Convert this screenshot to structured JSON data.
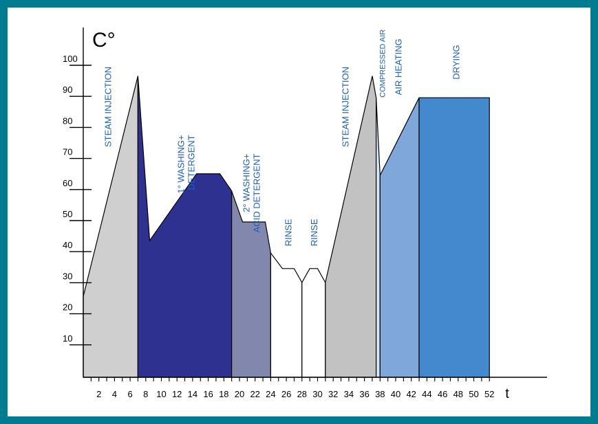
{
  "chart_data": {
    "type": "area",
    "y_label": "C°",
    "x_label": "t",
    "xlim": [
      0,
      58
    ],
    "ylim": [
      0,
      110
    ],
    "x_ticks": [
      2,
      4,
      6,
      8,
      10,
      12,
      14,
      16,
      18,
      20,
      22,
      24,
      26,
      28,
      30,
      32,
      34,
      36,
      38,
      40,
      42,
      44,
      46,
      48,
      50,
      52
    ],
    "y_ticks": [
      10,
      20,
      30,
      40,
      50,
      60,
      70,
      80,
      90,
      100
    ],
    "phases": [
      {
        "name": "steam-injection-1",
        "label": [
          "STEAM INJECTION"
        ],
        "color": "#cfcfcf",
        "points": [
          [
            0,
            26
          ],
          [
            7,
            97
          ],
          [
            7,
            0
          ],
          [
            0,
            0
          ]
        ],
        "label_x": 3.2,
        "label_top": 100,
        "font": "phase"
      },
      {
        "name": "washing-1",
        "label": [
          "1° WASHING+",
          "DETERGENT"
        ],
        "color": "#2e3190",
        "points": [
          [
            7,
            97
          ],
          [
            8.5,
            44
          ],
          [
            14.5,
            65.5
          ],
          [
            17.5,
            65.5
          ],
          [
            19,
            60
          ],
          [
            19,
            0
          ],
          [
            7,
            0
          ]
        ],
        "label_x": 13.2,
        "label_top": 78,
        "font": "phase"
      },
      {
        "name": "washing-2",
        "label": [
          "2° WASHING+",
          "ACID DETERGENT"
        ],
        "color": "#8288ad",
        "points": [
          [
            19,
            60
          ],
          [
            20.4,
            50
          ],
          [
            23.3,
            50
          ],
          [
            24,
            40
          ],
          [
            24,
            0
          ],
          [
            19,
            0
          ]
        ],
        "label_x": 21.6,
        "label_top": 72,
        "font": "phase"
      },
      {
        "name": "rinse-1",
        "label": [
          "RINSE"
        ],
        "color": "#ffffff",
        "points": [
          [
            24,
            40
          ],
          [
            25.5,
            35
          ],
          [
            27,
            35
          ],
          [
            28,
            30.5
          ],
          [
            28,
            0
          ],
          [
            24,
            0
          ]
        ],
        "label_x": 26.3,
        "label_top": 51,
        "font": "phase"
      },
      {
        "name": "rinse-2",
        "label": [
          "RINSE"
        ],
        "color": "#ffffff",
        "points": [
          [
            28,
            30.5
          ],
          [
            29,
            35
          ],
          [
            30,
            35
          ],
          [
            31,
            30.5
          ],
          [
            31,
            0
          ],
          [
            28,
            0
          ]
        ],
        "label_x": 29.6,
        "label_top": 51,
        "font": "phase"
      },
      {
        "name": "steam-injection-2",
        "label": [
          "STEAM INJECTION"
        ],
        "color": "#c2c2c2",
        "points": [
          [
            31,
            30.5
          ],
          [
            37,
            97
          ],
          [
            37.5,
            90
          ],
          [
            37.5,
            0
          ],
          [
            31,
            0
          ]
        ],
        "label_x": 33.6,
        "label_top": 100,
        "font": "phase"
      },
      {
        "name": "compressed-air",
        "label": [
          "COMPRESSED AIR"
        ],
        "color": "#cfe6f5",
        "points": [
          [
            37.5,
            90
          ],
          [
            38,
            65
          ],
          [
            38,
            0
          ],
          [
            37.5,
            0
          ]
        ],
        "label_x": 38.3,
        "label_top": 112,
        "font": "phase-small"
      },
      {
        "name": "air-heating",
        "label": [
          "AIR HEATING"
        ],
        "color": "#7fa7da",
        "points": [
          [
            38,
            65
          ],
          [
            43,
            90
          ],
          [
            43,
            0
          ],
          [
            38,
            0
          ]
        ],
        "label_x": 40.4,
        "label_top": 109,
        "font": "phase"
      },
      {
        "name": "drying",
        "label": [
          "DRYING"
        ],
        "color": "#4289cd",
        "points": [
          [
            43,
            90
          ],
          [
            52,
            90
          ],
          [
            52,
            0
          ],
          [
            43,
            0
          ]
        ],
        "label_x": 47.8,
        "label_top": 107,
        "font": "phase"
      }
    ]
  }
}
